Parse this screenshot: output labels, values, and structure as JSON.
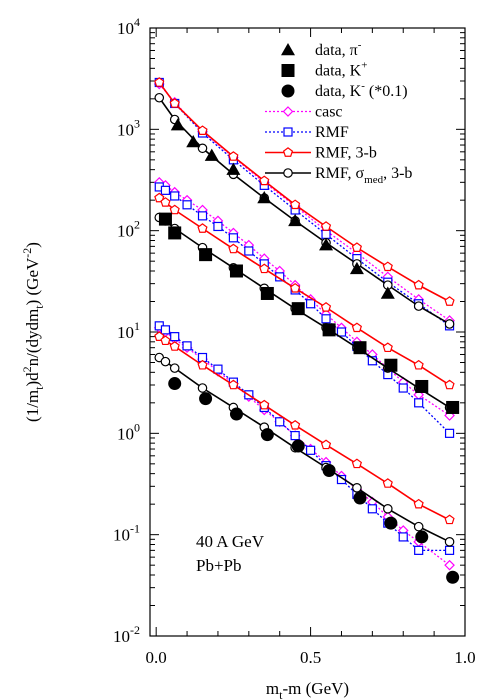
{
  "chart_data": {
    "type": "scatter",
    "xlabel": "m_t-m (GeV)",
    "ylabel": "(1/m_t)d^2n/(dydm_t) (GeV^-2)",
    "xlim": [
      -0.02,
      1.0
    ],
    "ylim": [
      0.01,
      10000
    ],
    "yscale": "log",
    "grid": false,
    "legend_position": "top-right",
    "annotation_lines": [
      "40 A GeV",
      "Pb+Pb"
    ],
    "x_ticks": [
      {
        "value": 0.0,
        "label": "0.0"
      },
      {
        "value": 0.5,
        "label": "0.5"
      },
      {
        "value": 1.0,
        "label": "1.0"
      }
    ],
    "y_ticks": [
      {
        "value": 0.01,
        "base": "10",
        "exp": "-2"
      },
      {
        "value": 0.1,
        "base": "10",
        "exp": "-1"
      },
      {
        "value": 1,
        "base": "10",
        "exp": "0"
      },
      {
        "value": 10,
        "base": "10",
        "exp": "1"
      },
      {
        "value": 100,
        "base": "10",
        "exp": "2"
      },
      {
        "value": 1000,
        "base": "10",
        "exp": "3"
      },
      {
        "value": 10000,
        "base": "10",
        "exp": "4"
      }
    ],
    "legend": [
      {
        "id": "data_piminus",
        "text": "data, π",
        "sup": "-",
        "tail": "",
        "marker": "triangle-filled",
        "line": "none",
        "color": "#000000"
      },
      {
        "id": "data_kplus",
        "text": "data, K",
        "sup": "+",
        "tail": "",
        "marker": "square-filled",
        "line": "none",
        "color": "#000000"
      },
      {
        "id": "data_kminus",
        "text": "data, K",
        "sup": "-",
        "tail": " (*0.1)",
        "marker": "circle-filled",
        "line": "none",
        "color": "#000000"
      },
      {
        "id": "casc",
        "text": "casc",
        "sup": "",
        "tail": "",
        "marker": "diamond-open",
        "line": "dotted",
        "color": "#ff00ff"
      },
      {
        "id": "rmf",
        "text": "RMF",
        "sup": "",
        "tail": "",
        "marker": "square-open",
        "line": "dotted",
        "color": "#0000ff"
      },
      {
        "id": "rmf3b",
        "text": "RMF, 3-b",
        "sup": "",
        "tail": "",
        "marker": "pentagon-open",
        "line": "solid",
        "color": "#ff0000"
      },
      {
        "id": "rmfsig",
        "text": "RMF, σ",
        "sub": "med",
        "tail": ", 3-b",
        "marker": "circle-open",
        "line": "solid",
        "color": "#000000"
      }
    ],
    "series": [
      {
        "name": "data, π-",
        "style": "data_piminus",
        "x": [
          0.07,
          0.12,
          0.18,
          0.25,
          0.35,
          0.45,
          0.55,
          0.65,
          0.75
        ],
        "y": [
          1100,
          750,
          550,
          400,
          210,
          125,
          72,
          42,
          24
        ]
      },
      {
        "name": "data, K+",
        "style": "data_kplus",
        "x": [
          0.03,
          0.06,
          0.16,
          0.26,
          0.36,
          0.46,
          0.56,
          0.66,
          0.76,
          0.86,
          0.96
        ],
        "y": [
          130,
          95,
          58,
          40,
          24,
          17,
          10.5,
          7,
          4.7,
          2.9,
          1.8
        ]
      },
      {
        "name": "data, K- (*0.1)",
        "style": "data_kminus",
        "x": [
          0.06,
          0.16,
          0.26,
          0.36,
          0.46,
          0.56,
          0.66,
          0.76,
          0.86,
          0.96
        ],
        "y": [
          3.1,
          2.2,
          1.55,
          0.97,
          0.75,
          0.43,
          0.23,
          0.13,
          0.095,
          0.038
        ]
      },
      {
        "name": "casc π-",
        "style": "casc",
        "x": [
          0.01,
          0.06,
          0.15,
          0.25,
          0.35,
          0.45,
          0.55,
          0.65,
          0.75,
          0.85,
          0.95
        ],
        "y": [
          2800,
          1850,
          950,
          530,
          300,
          175,
          100,
          60,
          35,
          21,
          13
        ]
      },
      {
        "name": "casc K+",
        "style": "casc",
        "x": [
          0.01,
          0.03,
          0.06,
          0.1,
          0.15,
          0.2,
          0.25,
          0.3,
          0.35,
          0.4,
          0.45,
          0.5,
          0.55,
          0.6,
          0.65,
          0.7,
          0.75,
          0.8,
          0.85,
          0.95
        ],
        "y": [
          300,
          280,
          240,
          200,
          160,
          125,
          95,
          72,
          53,
          40,
          29,
          21,
          15,
          11,
          8,
          6,
          4.4,
          3.2,
          2.4,
          1.5
        ]
      },
      {
        "name": "casc K-",
        "style": "casc",
        "x": [
          0.01,
          0.03,
          0.06,
          0.1,
          0.15,
          0.2,
          0.25,
          0.3,
          0.35,
          0.4,
          0.45,
          0.5,
          0.55,
          0.6,
          0.65,
          0.7,
          0.75,
          0.8,
          0.85,
          0.95
        ],
        "y": [
          11,
          10,
          8.5,
          7,
          5.4,
          4.1,
          3.1,
          2.3,
          1.7,
          1.3,
          0.95,
          0.7,
          0.52,
          0.38,
          0.28,
          0.21,
          0.15,
          0.11,
          0.085,
          0.05
        ]
      },
      {
        "name": "RMF π-",
        "style": "rmf",
        "x": [
          0.01,
          0.06,
          0.15,
          0.25,
          0.35,
          0.45,
          0.55,
          0.65,
          0.75,
          0.85,
          0.95
        ],
        "y": [
          2900,
          1800,
          920,
          500,
          280,
          160,
          92,
          53,
          31,
          19,
          11.5
        ]
      },
      {
        "name": "RMF K+",
        "style": "rmf",
        "x": [
          0.01,
          0.03,
          0.06,
          0.1,
          0.15,
          0.2,
          0.25,
          0.3,
          0.35,
          0.4,
          0.45,
          0.5,
          0.55,
          0.6,
          0.65,
          0.7,
          0.75,
          0.8,
          0.85,
          0.95
        ],
        "y": [
          270,
          250,
          220,
          180,
          140,
          110,
          85,
          63,
          47,
          35,
          26,
          19,
          13.5,
          10,
          7.2,
          5.2,
          3.8,
          2.8,
          2.0,
          1.0
        ]
      },
      {
        "name": "RMF K-",
        "style": "rmf",
        "x": [
          0.01,
          0.03,
          0.06,
          0.1,
          0.15,
          0.2,
          0.25,
          0.3,
          0.35,
          0.4,
          0.45,
          0.5,
          0.55,
          0.6,
          0.65,
          0.7,
          0.75,
          0.8,
          0.85,
          0.95
        ],
        "y": [
          11.5,
          10.5,
          9,
          7.3,
          5.6,
          4.3,
          3.2,
          2.4,
          1.8,
          1.3,
          0.95,
          0.68,
          0.48,
          0.35,
          0.25,
          0.18,
          0.13,
          0.095,
          0.07,
          0.07
        ]
      },
      {
        "name": "RMF, 3-b π-",
        "style": "rmf3b",
        "x": [
          0.01,
          0.06,
          0.15,
          0.25,
          0.35,
          0.45,
          0.55,
          0.65,
          0.75,
          0.85,
          0.95
        ],
        "y": [
          2900,
          1800,
          970,
          540,
          310,
          180,
          110,
          68,
          44,
          29,
          20
        ]
      },
      {
        "name": "RMF, 3-b K+",
        "style": "rmf3b",
        "x": [
          0.01,
          0.03,
          0.06,
          0.15,
          0.25,
          0.35,
          0.45,
          0.55,
          0.65,
          0.75,
          0.85,
          0.95
        ],
        "y": [
          210,
          190,
          160,
          105,
          66,
          42,
          27,
          17.5,
          11,
          7,
          4.7,
          3.0
        ]
      },
      {
        "name": "RMF, 3-b K-",
        "style": "rmf3b",
        "x": [
          0.01,
          0.03,
          0.06,
          0.15,
          0.25,
          0.35,
          0.45,
          0.55,
          0.65,
          0.75,
          0.85,
          0.95
        ],
        "y": [
          9,
          8.2,
          7.2,
          4.7,
          3.0,
          1.9,
          1.2,
          0.77,
          0.5,
          0.32,
          0.2,
          0.14
        ]
      },
      {
        "name": "RMF, σmed, 3-b π-",
        "style": "rmfsig",
        "x": [
          0.01,
          0.06,
          0.15,
          0.25,
          0.35,
          0.45,
          0.55,
          0.65,
          0.75,
          0.85,
          0.95
        ],
        "y": [
          2050,
          1250,
          650,
          360,
          210,
          125,
          76,
          47,
          29,
          18,
          12
        ]
      },
      {
        "name": "RMF, σmed, 3-b K+",
        "style": "rmfsig",
        "x": [
          0.01,
          0.03,
          0.06,
          0.15,
          0.25,
          0.35,
          0.45,
          0.55,
          0.65,
          0.75,
          0.85,
          0.95
        ],
        "y": [
          135,
          125,
          105,
          68,
          43,
          27,
          17,
          11,
          7,
          4.4,
          2.8,
          1.8
        ]
      },
      {
        "name": "RMF, σmed, 3-b K-",
        "style": "rmfsig",
        "x": [
          0.01,
          0.03,
          0.06,
          0.15,
          0.25,
          0.35,
          0.45,
          0.55,
          0.65,
          0.75,
          0.85,
          0.95
        ],
        "y": [
          5.6,
          5.1,
          4.4,
          2.8,
          1.8,
          1.15,
          0.72,
          0.46,
          0.29,
          0.18,
          0.12,
          0.085
        ]
      }
    ]
  }
}
